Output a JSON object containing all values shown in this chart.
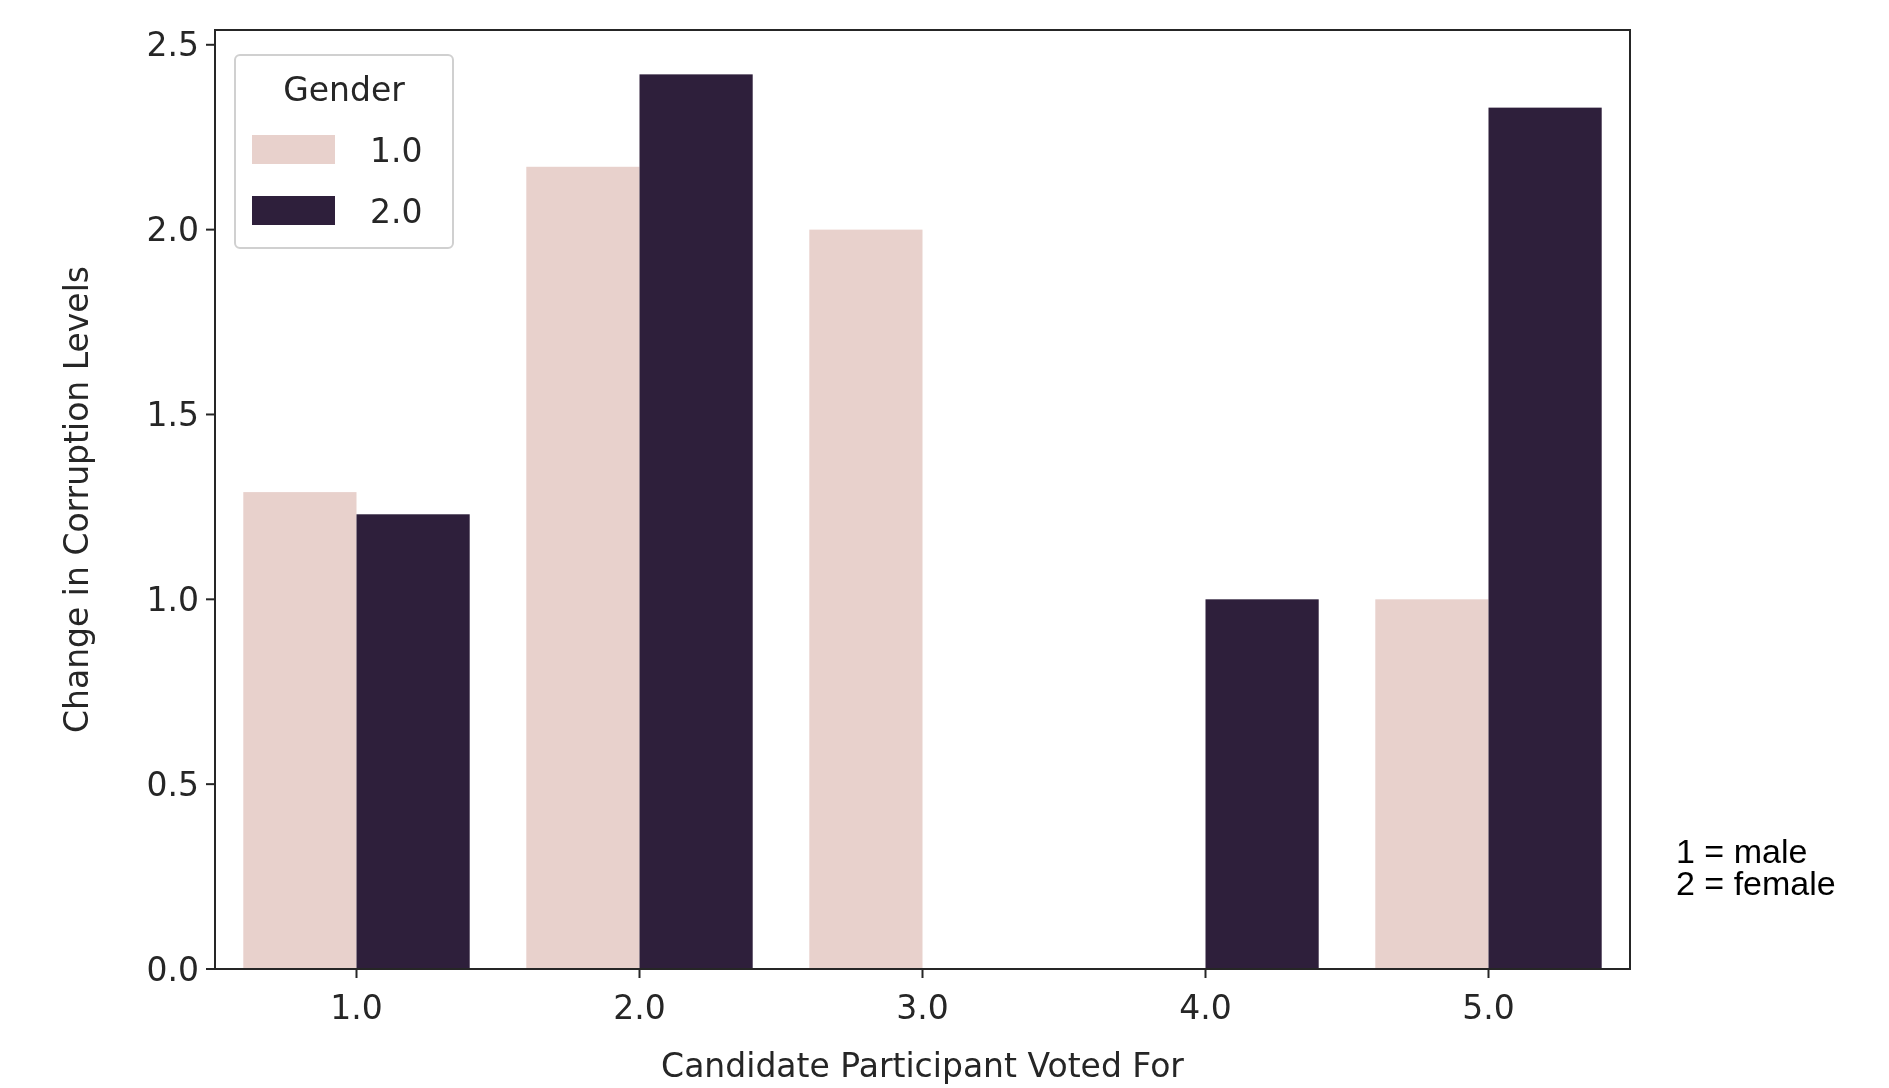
{
  "chart_data": {
    "type": "bar",
    "xlabel": "Candidate Participant Voted For",
    "ylabel": "Change in Corruption Levels",
    "legend_title": "Gender",
    "categories": [
      "1.0",
      "2.0",
      "3.0",
      "4.0",
      "5.0"
    ],
    "series": [
      {
        "name": "1.0",
        "color": "#e8d1cc",
        "values": [
          1.29,
          2.17,
          2.0,
          null,
          1.0
        ]
      },
      {
        "name": "2.0",
        "color": "#2e1f3b",
        "values": [
          1.23,
          2.42,
          null,
          1.0,
          2.33
        ]
      }
    ],
    "ylim": [
      0,
      2.54
    ],
    "yticks": [
      {
        "value": 0,
        "label": "0.0"
      },
      {
        "value": 0.5,
        "label": "0.5"
      },
      {
        "value": 1,
        "label": "1.0"
      },
      {
        "value": 1.5,
        "label": "1.5"
      },
      {
        "value": 2,
        "label": "2.0"
      },
      {
        "value": 2.5,
        "label": "2.5"
      }
    ],
    "grid": false,
    "legend": "top left",
    "annotations": [
      "1 = male",
      "2 = female"
    ]
  }
}
